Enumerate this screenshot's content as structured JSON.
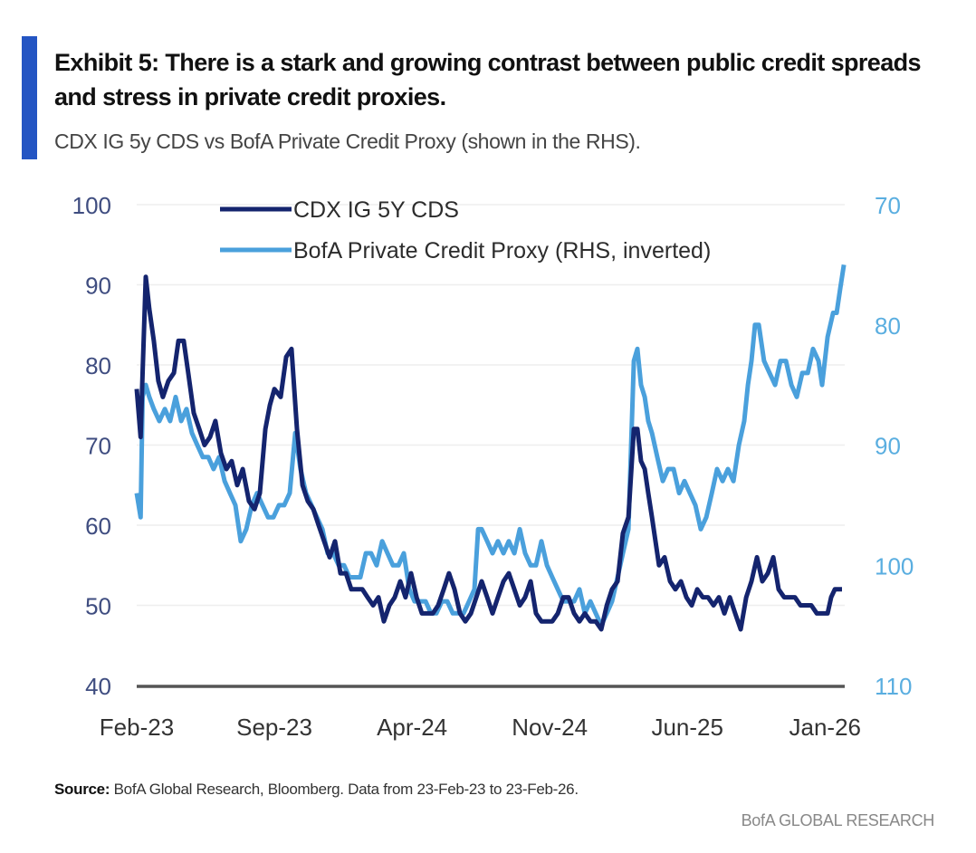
{
  "header": {
    "title": "Exhibit 5: There is a stark and growing contrast between public credit spreads and stress in private credit proxies.",
    "subtitle": "CDX IG 5y CDS vs BofA Private Credit Proxy (shown in the RHS)."
  },
  "footer": {
    "source_label": "Source:",
    "source_text": " BofA Global Research, Bloomberg. Data from 23-Feb-23 to 23-Feb-26.",
    "brand": "BofA GLOBAL RESEARCH"
  },
  "colors": {
    "accent": "#2455c3",
    "cdx": "#14246e",
    "proxy": "#4aa0dc",
    "baseline": "#555555",
    "grid": "#eeeeee"
  },
  "chart_data": {
    "type": "line",
    "title": "Exhibit 5: There is a stark and growing contrast between public credit spreads and stress in private credit proxies.",
    "xlabel": "",
    "x_unit": "months since Feb-23",
    "x_range": [
      0,
      36
    ],
    "x_ticks": [
      {
        "label": "Feb-23",
        "x": 0
      },
      {
        "label": "Sep-23",
        "x": 7
      },
      {
        "label": "Apr-24",
        "x": 14
      },
      {
        "label": "Nov-24",
        "x": 21
      },
      {
        "label": "Jun-25",
        "x": 28
      },
      {
        "label": "Jan-26",
        "x": 35
      }
    ],
    "y_left": {
      "label": "",
      "range": [
        40,
        100
      ],
      "ticks": [
        "100",
        "90",
        "80",
        "70",
        "60",
        "50",
        "40"
      ],
      "tick_values": [
        100,
        90,
        80,
        70,
        60,
        50,
        40
      ]
    },
    "y_right": {
      "label": "",
      "range": [
        70,
        110
      ],
      "inverted": true,
      "ticks": [
        "70",
        "80",
        "90",
        "100",
        "110"
      ],
      "tick_values": [
        70,
        80,
        90,
        100,
        110
      ]
    },
    "grid": true,
    "legend": {
      "placement": "top-center",
      "entries": [
        "CDX IG 5Y CDS",
        "BofA Private Credit Proxy (RHS, inverted)"
      ]
    },
    "series": [
      {
        "name": "CDX IG 5Y CDS",
        "axis": "left",
        "points": [
          [
            0,
            77
          ],
          [
            0.2,
            71
          ],
          [
            0.3,
            79
          ],
          [
            0.46,
            91
          ],
          [
            0.64,
            87
          ],
          [
            0.87,
            83
          ],
          [
            1.1,
            78
          ],
          [
            1.33,
            76
          ],
          [
            1.61,
            78
          ],
          [
            1.89,
            79
          ],
          [
            2.12,
            83
          ],
          [
            2.39,
            83
          ],
          [
            2.62,
            79
          ],
          [
            2.9,
            74
          ],
          [
            3.18,
            72
          ],
          [
            3.45,
            70
          ],
          [
            3.73,
            71
          ],
          [
            4.0,
            73
          ],
          [
            4.28,
            69
          ],
          [
            4.56,
            67
          ],
          [
            4.83,
            68
          ],
          [
            5.11,
            65
          ],
          [
            5.39,
            67
          ],
          [
            5.71,
            63
          ],
          [
            5.99,
            62
          ],
          [
            6.26,
            64
          ],
          [
            6.54,
            72
          ],
          [
            6.77,
            75
          ],
          [
            7.0,
            77
          ],
          [
            7.32,
            76
          ],
          [
            7.6,
            81
          ],
          [
            7.87,
            82
          ],
          [
            8.15,
            72
          ],
          [
            8.43,
            65
          ],
          [
            8.7,
            63
          ],
          [
            8.98,
            62
          ],
          [
            9.25,
            60
          ],
          [
            9.53,
            58
          ],
          [
            9.81,
            56
          ],
          [
            10.08,
            58
          ],
          [
            10.36,
            54
          ],
          [
            10.64,
            54
          ],
          [
            10.91,
            52
          ],
          [
            11.19,
            52
          ],
          [
            11.47,
            52
          ],
          [
            11.74,
            51
          ],
          [
            12.02,
            50
          ],
          [
            12.29,
            51
          ],
          [
            12.57,
            48
          ],
          [
            12.85,
            50
          ],
          [
            13.12,
            51
          ],
          [
            13.4,
            53
          ],
          [
            13.67,
            51
          ],
          [
            13.95,
            54
          ],
          [
            14.23,
            51
          ],
          [
            14.5,
            49
          ],
          [
            14.78,
            49
          ],
          [
            15.06,
            49
          ],
          [
            15.33,
            50
          ],
          [
            15.61,
            52
          ],
          [
            15.88,
            54
          ],
          [
            16.16,
            52
          ],
          [
            16.44,
            49
          ],
          [
            16.71,
            48
          ],
          [
            16.99,
            49
          ],
          [
            17.27,
            51
          ],
          [
            17.54,
            53
          ],
          [
            17.82,
            51
          ],
          [
            18.09,
            49
          ],
          [
            18.37,
            51
          ],
          [
            18.65,
            53
          ],
          [
            18.92,
            54
          ],
          [
            19.2,
            52
          ],
          [
            19.48,
            50
          ],
          [
            19.75,
            51
          ],
          [
            20.03,
            53
          ],
          [
            20.3,
            49
          ],
          [
            20.58,
            48
          ],
          [
            20.86,
            48
          ],
          [
            21.13,
            48
          ],
          [
            21.41,
            49
          ],
          [
            21.69,
            51
          ],
          [
            21.96,
            51
          ],
          [
            22.24,
            49
          ],
          [
            22.51,
            48
          ],
          [
            22.79,
            49
          ],
          [
            23.07,
            48
          ],
          [
            23.34,
            48
          ],
          [
            23.62,
            47
          ],
          [
            23.9,
            50
          ],
          [
            24.17,
            52
          ],
          [
            24.45,
            53
          ],
          [
            24.72,
            59
          ],
          [
            25.0,
            61
          ],
          [
            25.28,
            72
          ],
          [
            25.46,
            72
          ],
          [
            25.64,
            68
          ],
          [
            25.83,
            67
          ],
          [
            26.01,
            64
          ],
          [
            26.2,
            61
          ],
          [
            26.38,
            58
          ],
          [
            26.56,
            55
          ],
          [
            26.84,
            56
          ],
          [
            27.12,
            53
          ],
          [
            27.39,
            52
          ],
          [
            27.67,
            53
          ],
          [
            27.95,
            51
          ],
          [
            28.22,
            50
          ],
          [
            28.5,
            52
          ],
          [
            28.78,
            51
          ],
          [
            29.05,
            51
          ],
          [
            29.33,
            50
          ],
          [
            29.6,
            51
          ],
          [
            29.88,
            49
          ],
          [
            30.16,
            51
          ],
          [
            30.43,
            49
          ],
          [
            30.71,
            47
          ],
          [
            30.99,
            51
          ],
          [
            31.26,
            53
          ],
          [
            31.54,
            56
          ],
          [
            31.81,
            53
          ],
          [
            32.09,
            54
          ],
          [
            32.37,
            56
          ],
          [
            32.64,
            52
          ],
          [
            32.92,
            51
          ],
          [
            33.2,
            51
          ],
          [
            33.47,
            51
          ],
          [
            33.75,
            50
          ],
          [
            34.02,
            50
          ],
          [
            34.3,
            50
          ],
          [
            34.58,
            49
          ],
          [
            34.85,
            49
          ],
          [
            35.13,
            49
          ],
          [
            35.31,
            51
          ],
          [
            35.5,
            52
          ],
          [
            35.68,
            52
          ],
          [
            35.86,
            52
          ]
        ]
      },
      {
        "name": "BofA Private Credit Proxy (RHS, inverted)",
        "axis": "right",
        "points": [
          [
            0,
            94
          ],
          [
            0.2,
            96
          ],
          [
            0.3,
            86
          ],
          [
            0.46,
            85
          ],
          [
            0.64,
            86
          ],
          [
            0.87,
            87
          ],
          [
            1.15,
            88
          ],
          [
            1.43,
            87
          ],
          [
            1.7,
            88
          ],
          [
            1.98,
            86
          ],
          [
            2.26,
            88
          ],
          [
            2.53,
            87
          ],
          [
            2.81,
            89
          ],
          [
            3.08,
            90
          ],
          [
            3.36,
            91
          ],
          [
            3.64,
            91
          ],
          [
            3.91,
            92
          ],
          [
            4.19,
            91
          ],
          [
            4.47,
            93
          ],
          [
            4.74,
            94
          ],
          [
            5.02,
            95
          ],
          [
            5.29,
            98
          ],
          [
            5.57,
            97
          ],
          [
            5.85,
            95
          ],
          [
            6.12,
            94
          ],
          [
            6.4,
            95
          ],
          [
            6.68,
            96
          ],
          [
            6.95,
            96
          ],
          [
            7.23,
            95
          ],
          [
            7.5,
            95
          ],
          [
            7.78,
            94
          ],
          [
            8.06,
            89
          ],
          [
            8.33,
            92
          ],
          [
            8.61,
            94
          ],
          [
            8.89,
            95
          ],
          [
            9.16,
            96
          ],
          [
            9.44,
            97
          ],
          [
            9.71,
            99
          ],
          [
            9.99,
            99
          ],
          [
            10.27,
            100
          ],
          [
            10.54,
            100
          ],
          [
            10.82,
            101
          ],
          [
            11.1,
            101
          ],
          [
            11.37,
            101
          ],
          [
            11.65,
            99
          ],
          [
            11.92,
            99
          ],
          [
            12.2,
            100
          ],
          [
            12.48,
            98
          ],
          [
            12.75,
            99
          ],
          [
            13.03,
            100
          ],
          [
            13.31,
            100
          ],
          [
            13.58,
            99
          ],
          [
            13.86,
            102
          ],
          [
            14.13,
            103
          ],
          [
            14.41,
            103
          ],
          [
            14.69,
            103
          ],
          [
            14.96,
            104
          ],
          [
            15.24,
            104
          ],
          [
            15.52,
            103
          ],
          [
            15.79,
            103
          ],
          [
            16.07,
            104
          ],
          [
            16.34,
            104
          ],
          [
            16.62,
            104
          ],
          [
            16.9,
            103
          ],
          [
            17.17,
            102
          ],
          [
            17.36,
            97
          ],
          [
            17.54,
            97
          ],
          [
            17.82,
            98
          ],
          [
            18.09,
            99
          ],
          [
            18.37,
            98
          ],
          [
            18.65,
            99
          ],
          [
            18.92,
            98
          ],
          [
            19.2,
            99
          ],
          [
            19.48,
            97
          ],
          [
            19.75,
            99
          ],
          [
            20.03,
            100
          ],
          [
            20.3,
            100
          ],
          [
            20.58,
            98
          ],
          [
            20.86,
            100
          ],
          [
            21.13,
            101
          ],
          [
            21.41,
            102
          ],
          [
            21.69,
            103
          ],
          [
            21.96,
            103
          ],
          [
            22.24,
            103
          ],
          [
            22.51,
            102
          ],
          [
            22.79,
            104
          ],
          [
            23.07,
            103
          ],
          [
            23.34,
            104
          ],
          [
            23.62,
            105
          ],
          [
            23.9,
            104
          ],
          [
            24.17,
            103
          ],
          [
            24.45,
            101
          ],
          [
            24.72,
            99
          ],
          [
            25.0,
            97
          ],
          [
            25.28,
            83
          ],
          [
            25.46,
            82
          ],
          [
            25.64,
            85
          ],
          [
            25.83,
            86
          ],
          [
            26.01,
            88
          ],
          [
            26.2,
            89
          ],
          [
            26.47,
            91
          ],
          [
            26.75,
            93
          ],
          [
            27.02,
            92
          ],
          [
            27.3,
            92
          ],
          [
            27.58,
            94
          ],
          [
            27.85,
            93
          ],
          [
            28.13,
            94
          ],
          [
            28.41,
            95
          ],
          [
            28.68,
            97
          ],
          [
            28.96,
            96
          ],
          [
            29.24,
            94
          ],
          [
            29.51,
            92
          ],
          [
            29.79,
            93
          ],
          [
            30.06,
            92
          ],
          [
            30.34,
            93
          ],
          [
            30.62,
            90
          ],
          [
            30.89,
            88
          ],
          [
            31.08,
            85
          ],
          [
            31.26,
            83
          ],
          [
            31.44,
            80
          ],
          [
            31.63,
            80
          ],
          [
            31.9,
            83
          ],
          [
            32.18,
            84
          ],
          [
            32.46,
            85
          ],
          [
            32.73,
            83
          ],
          [
            33.01,
            83
          ],
          [
            33.29,
            85
          ],
          [
            33.56,
            86
          ],
          [
            33.84,
            84
          ],
          [
            34.12,
            84
          ],
          [
            34.39,
            82
          ],
          [
            34.67,
            83
          ],
          [
            34.85,
            85
          ],
          [
            35.13,
            81
          ],
          [
            35.41,
            79
          ],
          [
            35.59,
            79
          ],
          [
            35.77,
            77
          ],
          [
            35.96,
            75
          ]
        ]
      }
    ]
  }
}
